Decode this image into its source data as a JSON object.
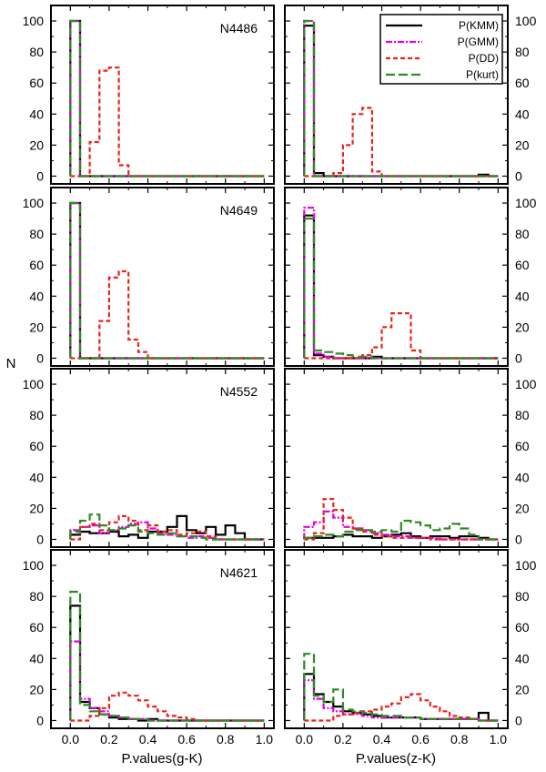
{
  "chart_data": {
    "type": "histogram-grid",
    "ylabel": "N",
    "xlabels": [
      "P.values(g-K)",
      "P.values(z-K)"
    ],
    "xlim": [
      -0.1,
      1.05
    ],
    "ylim": [
      -5,
      110
    ],
    "bin_width": 0.05,
    "xticks": [
      "0.0",
      "0.2",
      "0.4",
      "0.6",
      "0.8",
      "1.0"
    ],
    "xtick_values": [
      0,
      0.2,
      0.4,
      0.6,
      0.8,
      1.0
    ],
    "yticks": [
      "0",
      "20",
      "40",
      "60",
      "80",
      "100"
    ],
    "ytick_values": [
      0,
      20,
      40,
      60,
      80,
      100
    ],
    "legend": [
      {
        "key": "KMM",
        "label": "P(KMM)",
        "color": "#000000",
        "dash": ""
      },
      {
        "key": "GMM",
        "label": "P(GMM)",
        "color": "#e000e0",
        "dash": "7,2,2,2"
      },
      {
        "key": "DD",
        "label": "P(DD)",
        "color": "#e8231c",
        "dash": "5,3"
      },
      {
        "key": "kurt",
        "label": "P(kurt)",
        "color": "#2e8b22",
        "dash": "10,4"
      }
    ],
    "panels": [
      {
        "galaxy": "N4486",
        "col": "g-K",
        "series": {
          "KMM": [
            100,
            0,
            0,
            0,
            0,
            0,
            0,
            0,
            0,
            0,
            0,
            0,
            0,
            0,
            0,
            0,
            0,
            0,
            0,
            0
          ],
          "GMM": [
            100,
            0,
            0,
            0,
            0,
            0,
            0,
            0,
            0,
            0,
            0,
            0,
            0,
            0,
            0,
            0,
            0,
            0,
            0,
            0
          ],
          "DD": [
            0,
            0,
            22,
            68,
            70,
            7,
            0,
            0,
            0,
            0,
            0,
            0,
            0,
            0,
            0,
            0,
            0,
            0,
            0,
            0
          ],
          "kurt": [
            100,
            0,
            0,
            0,
            0,
            0,
            0,
            0,
            0,
            0,
            0,
            0,
            0,
            0,
            0,
            0,
            0,
            0,
            0,
            0
          ]
        }
      },
      {
        "galaxy": "",
        "col": "z-K",
        "series": {
          "KMM": [
            97,
            2,
            0,
            0,
            0,
            0,
            0,
            0,
            0,
            0,
            0,
            0,
            0,
            0,
            0,
            0,
            0,
            0,
            1,
            0
          ],
          "GMM": [
            100,
            0,
            0,
            0,
            0,
            0,
            0,
            0,
            0,
            0,
            0,
            0,
            0,
            0,
            0,
            0,
            0,
            0,
            0,
            0
          ],
          "DD": [
            0,
            0,
            0,
            2,
            20,
            40,
            44,
            3,
            0,
            0,
            0,
            0,
            0,
            0,
            0,
            0,
            0,
            0,
            0,
            0
          ],
          "kurt": [
            100,
            0,
            0,
            0,
            0,
            0,
            0,
            0,
            0,
            0,
            0,
            0,
            0,
            0,
            0,
            0,
            0,
            0,
            0,
            0
          ]
        }
      },
      {
        "galaxy": "N4649",
        "col": "g-K",
        "series": {
          "KMM": [
            100,
            0,
            0,
            0,
            0,
            0,
            0,
            0,
            0,
            0,
            0,
            0,
            0,
            0,
            0,
            0,
            0,
            0,
            0,
            0
          ],
          "GMM": [
            100,
            0,
            0,
            0,
            0,
            0,
            0,
            0,
            0,
            0,
            0,
            0,
            0,
            0,
            0,
            0,
            0,
            0,
            0,
            0
          ],
          "DD": [
            0,
            0,
            0,
            24,
            52,
            56,
            12,
            4,
            0,
            0,
            0,
            0,
            0,
            0,
            0,
            0,
            0,
            0,
            0,
            0
          ],
          "kurt": [
            100,
            0,
            0,
            0,
            0,
            0,
            0,
            0,
            0,
            0,
            0,
            0,
            0,
            0,
            0,
            0,
            0,
            0,
            0,
            0
          ]
        }
      },
      {
        "galaxy": "",
        "col": "z-K",
        "series": {
          "KMM": [
            92,
            2,
            1,
            0,
            0,
            0,
            0,
            1,
            0,
            0,
            0,
            0,
            0,
            0,
            0,
            0,
            0,
            0,
            0,
            0
          ],
          "GMM": [
            97,
            3,
            1,
            0,
            0,
            0,
            0,
            0,
            0,
            0,
            0,
            0,
            0,
            0,
            0,
            0,
            0,
            0,
            0,
            0
          ],
          "DD": [
            0,
            0,
            0,
            0,
            0,
            0,
            2,
            7,
            20,
            29,
            29,
            5,
            0,
            0,
            0,
            0,
            0,
            0,
            0,
            0
          ],
          "kurt": [
            90,
            5,
            4,
            3,
            2,
            1,
            1,
            0,
            0,
            0,
            0,
            0,
            0,
            0,
            0,
            0,
            0,
            0,
            0,
            0
          ]
        }
      },
      {
        "galaxy": "N4552",
        "col": "g-K",
        "series": {
          "KMM": [
            3,
            5,
            4,
            4,
            5,
            2,
            3,
            1,
            5,
            5,
            8,
            15,
            6,
            4,
            8,
            3,
            9,
            4,
            0,
            0
          ],
          "GMM": [
            6,
            8,
            9,
            4,
            6,
            8,
            10,
            11,
            7,
            4,
            3,
            2,
            1,
            2,
            1,
            0,
            0,
            0,
            0,
            0
          ],
          "DD": [
            0,
            8,
            10,
            6,
            11,
            15,
            12,
            6,
            9,
            5,
            6,
            3,
            4,
            5,
            2,
            0,
            0,
            0,
            0,
            0
          ],
          "kurt": [
            5,
            12,
            16,
            9,
            6,
            7,
            9,
            5,
            4,
            3,
            4,
            2,
            2,
            1,
            0,
            0,
            0,
            0,
            0,
            0
          ]
        }
      },
      {
        "galaxy": "",
        "col": "z-K",
        "series": {
          "KMM": [
            1,
            1,
            1,
            2,
            3,
            2,
            2,
            1,
            2,
            3,
            4,
            2,
            1,
            2,
            2,
            1,
            2,
            2,
            1,
            0
          ],
          "GMM": [
            8,
            11,
            18,
            14,
            8,
            7,
            6,
            4,
            3,
            2,
            2,
            1,
            1,
            1,
            0,
            0,
            0,
            0,
            0,
            0
          ],
          "DD": [
            0,
            4,
            26,
            19,
            14,
            7,
            5,
            3,
            2,
            1,
            1,
            1,
            1,
            0,
            0,
            0,
            0,
            0,
            0,
            0
          ],
          "kurt": [
            1,
            2,
            3,
            2,
            5,
            6,
            6,
            5,
            6,
            5,
            12,
            11,
            9,
            6,
            7,
            10,
            7,
            3,
            0,
            0
          ]
        }
      },
      {
        "galaxy": "N4621",
        "col": "g-K",
        "series": {
          "KMM": [
            74,
            12,
            8,
            4,
            2,
            1,
            1,
            0,
            1,
            0,
            0,
            0,
            0,
            0,
            0,
            0,
            0,
            0,
            0,
            0
          ],
          "GMM": [
            51,
            14,
            8,
            6,
            3,
            2,
            1,
            1,
            0,
            0,
            0,
            0,
            0,
            0,
            0,
            0,
            0,
            0,
            0,
            0
          ],
          "DD": [
            0,
            0,
            3,
            8,
            16,
            18,
            16,
            13,
            9,
            6,
            3,
            2,
            1,
            0,
            0,
            0,
            0,
            0,
            0,
            0
          ],
          "kurt": [
            83,
            10,
            6,
            4,
            3,
            2,
            1,
            1,
            0,
            0,
            0,
            0,
            0,
            0,
            0,
            0,
            0,
            0,
            0,
            0
          ]
        }
      },
      {
        "galaxy": "",
        "col": "z-K",
        "series": {
          "KMM": [
            30,
            17,
            12,
            9,
            6,
            5,
            4,
            3,
            2,
            2,
            2,
            2,
            1,
            1,
            1,
            1,
            1,
            1,
            5,
            0
          ],
          "GMM": [
            26,
            14,
            8,
            6,
            4,
            4,
            3,
            2,
            2,
            2,
            2,
            2,
            1,
            1,
            1,
            1,
            1,
            1,
            0,
            0
          ],
          "DD": [
            0,
            0,
            0,
            3,
            4,
            5,
            6,
            7,
            9,
            11,
            15,
            17,
            13,
            9,
            6,
            3,
            2,
            1,
            0,
            0
          ],
          "kurt": [
            43,
            16,
            12,
            20,
            7,
            6,
            5,
            4,
            3,
            3,
            2,
            2,
            1,
            1,
            1,
            1,
            1,
            1,
            0,
            0
          ]
        }
      }
    ]
  }
}
